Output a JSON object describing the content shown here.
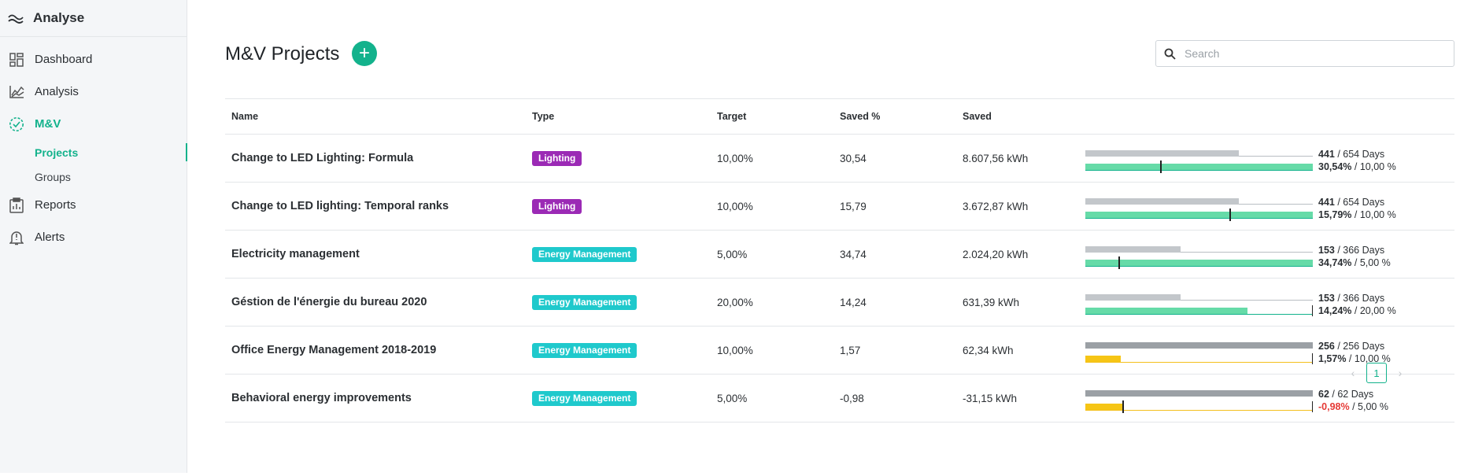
{
  "app": {
    "title": "Analyse"
  },
  "sidebar": {
    "items": [
      {
        "label": "Dashboard",
        "icon": "dashboard-icon"
      },
      {
        "label": "Analysis",
        "icon": "chart-line-icon"
      },
      {
        "label": "M&V",
        "icon": "circle-check-icon",
        "active": true
      },
      {
        "label": "Reports",
        "icon": "clipboard-icon"
      },
      {
        "label": "Alerts",
        "icon": "bell-icon"
      }
    ],
    "mv_sub": [
      {
        "label": "Projects",
        "active": true
      },
      {
        "label": "Groups"
      }
    ]
  },
  "header": {
    "title": "M&V Projects",
    "add_label": "+"
  },
  "search": {
    "placeholder": "Search",
    "value": ""
  },
  "table": {
    "columns": [
      "Name",
      "Type",
      "Target",
      "Saved %",
      "Saved",
      ""
    ],
    "rows": [
      {
        "name": "Change to LED Lighting: Formula",
        "type": "Lighting",
        "target": "10,00%",
        "saved_pct": "30,54",
        "saved": "8.607,56 kWh",
        "days_done": "441",
        "days_text": " / 654 Days",
        "pct_text": "30,54%",
        "target_text": " / 10,00 %",
        "time_fraction": 0.674,
        "saved_fraction": 1.0,
        "target_fraction": 0.327,
        "color": "green"
      },
      {
        "name": "Change to LED lighting: Temporal ranks",
        "type": "Lighting",
        "target": "10,00%",
        "saved_pct": "15,79",
        "saved": "3.672,87 kWh",
        "days_done": "441",
        "days_text": " / 654 Days",
        "pct_text": "15,79%",
        "target_text": " / 10,00 %",
        "time_fraction": 0.674,
        "saved_fraction": 1.0,
        "target_fraction": 0.633,
        "color": "green"
      },
      {
        "name": "Electricity management",
        "type": "Energy Management",
        "target": "5,00%",
        "saved_pct": "34,74",
        "saved": "2.024,20 kWh",
        "days_done": "153",
        "days_text": " / 366 Days",
        "pct_text": "34,74%",
        "target_text": " / 5,00 %",
        "time_fraction": 0.418,
        "saved_fraction": 1.0,
        "target_fraction": 0.144,
        "color": "green"
      },
      {
        "name": "Géstion de l'énergie du bureau 2020",
        "type": "Energy Management",
        "target": "20,00%",
        "saved_pct": "14,24",
        "saved": "631,39 kWh",
        "days_done": "153",
        "days_text": " / 366 Days",
        "pct_text": "14,24%",
        "target_text": " / 20,00 %",
        "time_fraction": 0.418,
        "saved_fraction": 0.712,
        "target_fraction": 1.0,
        "color": "green"
      },
      {
        "name": "Office Energy Management 2018-2019",
        "type": "Energy Management",
        "target": "10,00%",
        "saved_pct": "1,57",
        "saved": "62,34 kWh",
        "days_done": "256",
        "days_text": " / 256 Days",
        "pct_text": "1,57%",
        "target_text": " / 10,00 %",
        "time_fraction": 1.0,
        "saved_fraction": 0.157,
        "target_fraction": 1.0,
        "color": "yellow"
      },
      {
        "name": "Behavioral energy improvements",
        "type": "Energy Management",
        "target": "5,00%",
        "saved_pct": "-0,98",
        "saved": "-31,15 kWh",
        "days_done": "62",
        "days_text": " / 62 Days",
        "pct_text": "-0,98%",
        "target_text": " / 5,00 %",
        "time_fraction": 1.0,
        "saved_fraction": 0.163,
        "target_fraction": 0.163,
        "color": "yellow",
        "negative": true
      }
    ]
  },
  "pagination": {
    "current": "1",
    "prev": "‹",
    "next": "›"
  },
  "colors": {
    "accent": "#13b28c",
    "lighting": "#9b2ab5",
    "energy": "#1fc9cc",
    "warning": "#f6c515",
    "negative": "#e53935"
  }
}
